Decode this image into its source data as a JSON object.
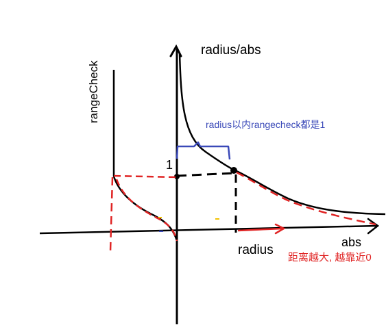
{
  "labels": {
    "title": "radius/abs",
    "vertical_axis": "rangeCheck",
    "one": "1",
    "blue_note": "radius以内rangecheck都是1",
    "radius": "radius",
    "abs": "abs",
    "red_note": "距离越大, 越靠近0"
  },
  "colors": {
    "ink": "#000000",
    "blue": "#3a49b8",
    "red": "#e02424",
    "yellow": "#f2c200"
  }
}
